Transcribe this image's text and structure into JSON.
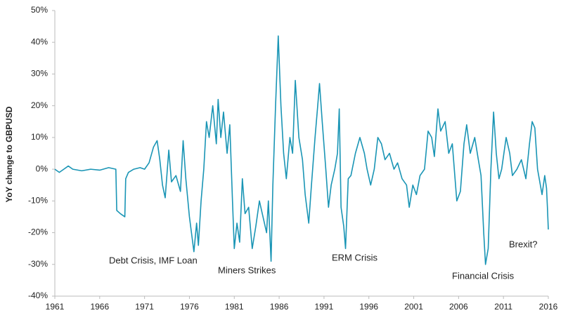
{
  "chart_data": {
    "type": "line",
    "y_label": "YoY change to GBPUSD",
    "annotations": [
      "Debt Crisis, IMF Loan",
      "Miners Strikes",
      "ERM Crisis",
      "Financial Crisis",
      "Brexit?"
    ],
    "color": "#1a95b5",
    "xlim": [
      1961,
      2016
    ],
    "xticks": [
      1961,
      1966,
      1971,
      1976,
      1981,
      1986,
      1991,
      1996,
      2001,
      2006,
      2011,
      2016
    ],
    "ylim": [
      -40,
      50
    ],
    "yticks": [
      {
        "value": -40,
        "label": "-40%"
      },
      {
        "value": -30,
        "label": "-30%"
      },
      {
        "value": -20,
        "label": "-20%"
      },
      {
        "value": -10,
        "label": "-10%"
      },
      {
        "value": 0,
        "label": "0%"
      },
      {
        "value": 10,
        "label": "10%"
      },
      {
        "value": 20,
        "label": "20%"
      },
      {
        "value": 30,
        "label": "30%"
      },
      {
        "value": 40,
        "label": "40%"
      },
      {
        "value": 50,
        "label": "50%"
      }
    ],
    "x": [
      1961.0,
      1961.5,
      1962.0,
      1962.5,
      1963.0,
      1964.0,
      1965.0,
      1966.0,
      1967.0,
      1967.8,
      1967.9,
      1968.3,
      1968.8,
      1968.9,
      1969.2,
      1969.8,
      1970.5,
      1971.0,
      1971.5,
      1972.0,
      1972.4,
      1972.7,
      1973.0,
      1973.3,
      1973.7,
      1974.0,
      1974.5,
      1975.0,
      1975.3,
      1975.6,
      1976.0,
      1976.5,
      1976.8,
      1977.0,
      1977.3,
      1977.6,
      1977.9,
      1978.2,
      1978.6,
      1979.0,
      1979.2,
      1979.5,
      1979.8,
      1980.2,
      1980.5,
      1980.8,
      1981.0,
      1981.3,
      1981.6,
      1981.9,
      1982.2,
      1982.6,
      1983.0,
      1983.4,
      1983.8,
      1984.2,
      1984.6,
      1984.8,
      1985.1,
      1985.3,
      1985.6,
      1985.9,
      1986.2,
      1986.5,
      1986.8,
      1987.2,
      1987.5,
      1987.8,
      1988.2,
      1988.6,
      1988.9,
      1989.3,
      1989.6,
      1990.0,
      1990.3,
      1990.5,
      1990.8,
      1991.2,
      1991.5,
      1991.8,
      1992.2,
      1992.5,
      1992.7,
      1992.9,
      1993.2,
      1993.4,
      1993.7,
      1994.0,
      1994.5,
      1995.0,
      1995.5,
      1995.8,
      1996.2,
      1996.6,
      1997.0,
      1997.4,
      1997.8,
      1998.3,
      1998.8,
      1999.2,
      1999.7,
      2000.2,
      2000.5,
      2000.9,
      2001.3,
      2001.7,
      2002.2,
      2002.6,
      2003.0,
      2003.3,
      2003.7,
      2004.0,
      2004.5,
      2004.9,
      2005.3,
      2005.8,
      2006.2,
      2006.6,
      2006.9,
      2007.3,
      2007.8,
      2008.2,
      2008.5,
      2008.8,
      2009.0,
      2009.3,
      2009.6,
      2009.9,
      2010.2,
      2010.5,
      2010.8,
      2011.3,
      2011.7,
      2012.0,
      2012.5,
      2013.0,
      2013.5,
      2013.9,
      2014.2,
      2014.5,
      2014.8,
      2015.3,
      2015.6,
      2015.8,
      2015.9,
      2016.0
    ],
    "values": [
      0,
      -1,
      0,
      1,
      0,
      -0.5,
      0,
      -0.3,
      0.5,
      0,
      -13,
      -14,
      -15,
      -3,
      -1,
      0,
      0.5,
      0,
      2,
      7,
      9,
      3,
      -5,
      -9,
      6,
      -4,
      -2,
      -7,
      9,
      -3,
      -15,
      -26,
      -17,
      -24,
      -10,
      0,
      15,
      10,
      20,
      8,
      22,
      10,
      18,
      5,
      14,
      -10,
      -25,
      -17,
      -23,
      -3,
      -14,
      -12,
      -25,
      -18,
      -10,
      -15,
      -20,
      -10,
      -29,
      -5,
      20,
      42,
      20,
      5,
      -3,
      10,
      5,
      28,
      10,
      3,
      -8,
      -17,
      -5,
      10,
      20,
      27,
      15,
      0,
      -12,
      -5,
      0,
      5,
      19,
      -12,
      -18,
      -25,
      -3,
      -2,
      5,
      10,
      5,
      0,
      -5,
      0,
      10,
      8,
      3,
      5,
      0,
      2,
      -3,
      -5,
      -12,
      -5,
      -8,
      -2,
      0,
      12,
      10,
      4,
      19,
      12,
      15,
      5,
      8,
      -10,
      -7,
      8,
      14,
      5,
      10,
      3,
      -2,
      -20,
      -30,
      -25,
      0,
      18,
      5,
      -3,
      0,
      10,
      5,
      -2,
      0,
      3,
      -3,
      8,
      15,
      13,
      0,
      -8,
      -2,
      -6,
      -12,
      -19
    ]
  }
}
